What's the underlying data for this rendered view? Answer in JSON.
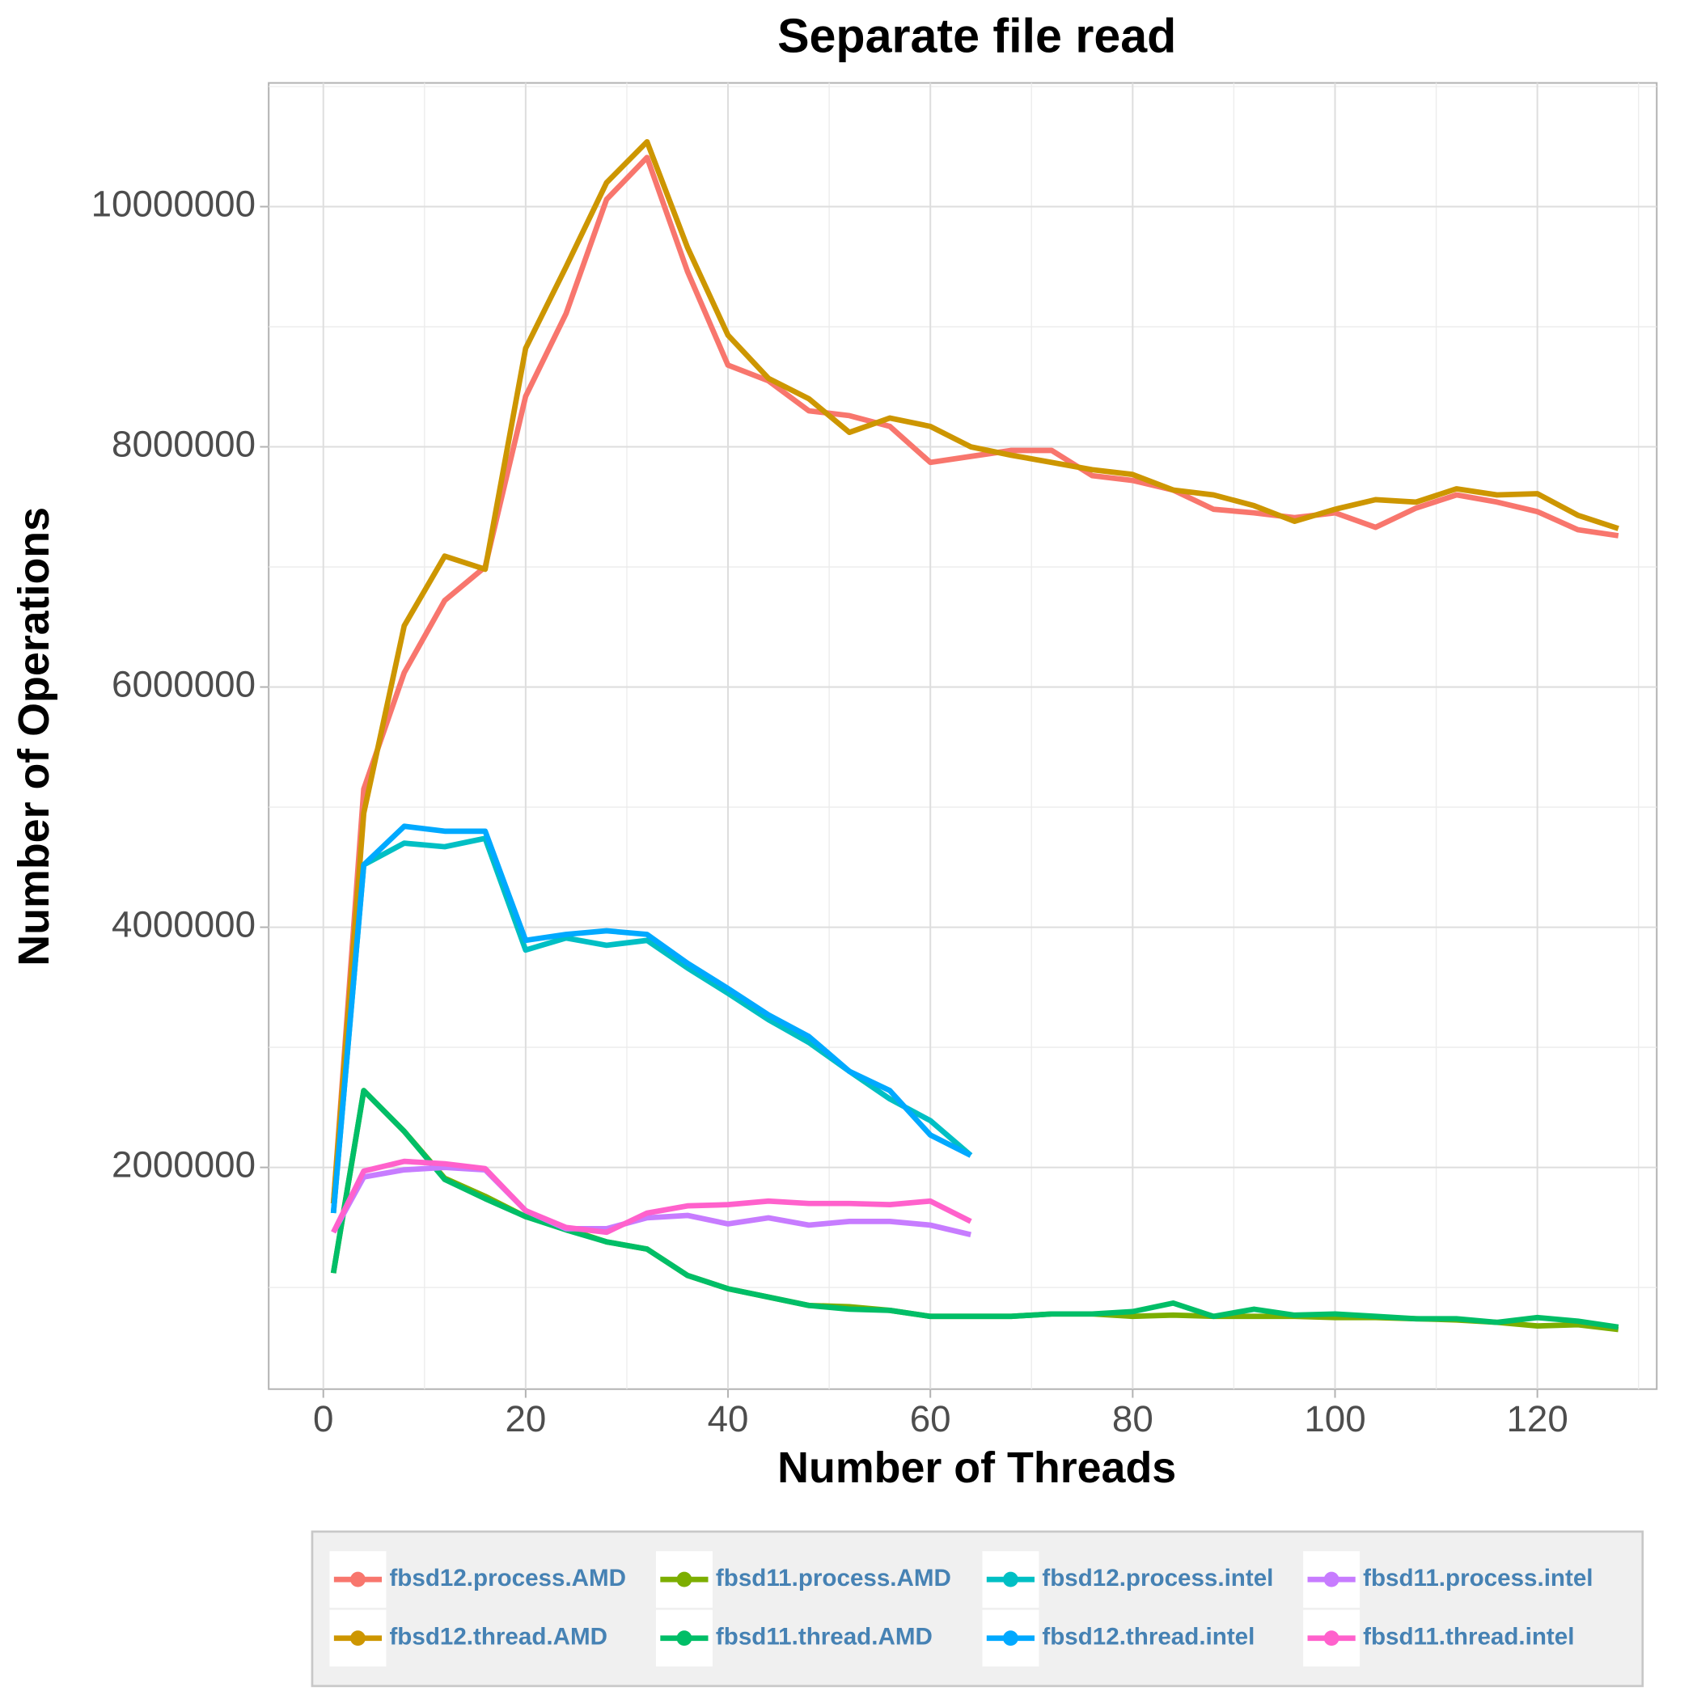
{
  "chart_data": {
    "type": "line",
    "title": "Separate file read",
    "xlabel": "Number of Threads",
    "ylabel": "Number of Operations",
    "x": [
      1,
      4,
      8,
      12,
      16,
      20,
      24,
      28,
      32,
      36,
      40,
      44,
      48,
      52,
      56,
      60,
      64,
      68,
      72,
      76,
      80,
      84,
      88,
      92,
      96,
      100,
      104,
      108,
      112,
      116,
      120,
      124,
      128
    ],
    "xlim": [
      -5.4,
      131.8
    ],
    "xticks": [
      0,
      20,
      40,
      60,
      80,
      100,
      120
    ],
    "ylim": [
      154000,
      11030000
    ],
    "yticks": [
      2000000,
      4000000,
      6000000,
      8000000,
      10000000
    ],
    "grid": true,
    "legend": "bottom",
    "series": [
      {
        "name": "fbsd12.process.AMD",
        "color": "#F8766D",
        "values": [
          1700000,
          5150000,
          6120000,
          6720000,
          7000000,
          8420000,
          9110000,
          10060000,
          10410000,
          9460000,
          8680000,
          8550000,
          8300000,
          8260000,
          8170000,
          7870000,
          7920000,
          7970000,
          7970000,
          7760000,
          7720000,
          7640000,
          7480000,
          7450000,
          7410000,
          7450000,
          7330000,
          7490000,
          7600000,
          7540000,
          7460000,
          7310000,
          7260000
        ]
      },
      {
        "name": "fbsd12.thread.AMD",
        "color": "#CD9600",
        "values": [
          1700000,
          4950000,
          6510000,
          7090000,
          6980000,
          8820000,
          9500000,
          10200000,
          10540000,
          9660000,
          8930000,
          8570000,
          8400000,
          8120000,
          8240000,
          8170000,
          8000000,
          7930000,
          7870000,
          7810000,
          7770000,
          7640000,
          7600000,
          7510000,
          7380000,
          7480000,
          7560000,
          7540000,
          7650000,
          7600000,
          7610000,
          7430000,
          7320000
        ]
      },
      {
        "name": "fbsd11.process.AMD",
        "color": "#7CAE00",
        "values": [
          1120000,
          2640000,
          2300000,
          1910000,
          1760000,
          1590000,
          1490000,
          1380000,
          1320000,
          1100000,
          990000,
          920000,
          850000,
          840000,
          810000,
          760000,
          760000,
          760000,
          780000,
          780000,
          760000,
          770000,
          760000,
          760000,
          760000,
          750000,
          750000,
          740000,
          730000,
          710000,
          680000,
          690000,
          650000
        ]
      },
      {
        "name": "fbsd11.thread.AMD",
        "color": "#00BE67",
        "values": [
          1120000,
          2640000,
          2300000,
          1900000,
          1740000,
          1590000,
          1480000,
          1380000,
          1320000,
          1100000,
          990000,
          920000,
          850000,
          820000,
          810000,
          760000,
          760000,
          760000,
          780000,
          780000,
          800000,
          870000,
          760000,
          820000,
          770000,
          780000,
          760000,
          740000,
          740000,
          710000,
          750000,
          720000,
          670000
        ]
      },
      {
        "name": "fbsd12.process.intel",
        "color": "#00BFC4",
        "values": [
          1620000,
          4520000,
          4700000,
          4670000,
          4740000,
          3810000,
          3910000,
          3850000,
          3890000,
          3660000,
          3450000,
          3230000,
          3040000,
          2800000,
          2570000,
          2390000,
          2100000,
          null,
          null,
          null,
          null,
          null,
          null,
          null,
          null,
          null,
          null,
          null,
          null,
          null,
          null,
          null,
          null
        ]
      },
      {
        "name": "fbsd12.thread.intel",
        "color": "#00A9FF",
        "values": [
          1620000,
          4520000,
          4840000,
          4800000,
          4800000,
          3890000,
          3940000,
          3970000,
          3940000,
          3700000,
          3490000,
          3270000,
          3090000,
          2800000,
          2640000,
          2270000,
          2100000,
          null,
          null,
          null,
          null,
          null,
          null,
          null,
          null,
          null,
          null,
          null,
          null,
          null,
          null,
          null,
          null
        ]
      },
      {
        "name": "fbsd11.process.intel",
        "color": "#C77CFF",
        "values": [
          1460000,
          1920000,
          1980000,
          2000000,
          1980000,
          1640000,
          1490000,
          1490000,
          1580000,
          1600000,
          1530000,
          1580000,
          1520000,
          1550000,
          1550000,
          1520000,
          1440000,
          null,
          null,
          null,
          null,
          null,
          null,
          null,
          null,
          null,
          null,
          null,
          null,
          null,
          null,
          null,
          null
        ]
      },
      {
        "name": "fbsd11.thread.intel",
        "color": "#FF61CC",
        "values": [
          1460000,
          1970000,
          2050000,
          2030000,
          1990000,
          1640000,
          1500000,
          1460000,
          1620000,
          1680000,
          1690000,
          1720000,
          1700000,
          1700000,
          1690000,
          1720000,
          1550000,
          null,
          null,
          null,
          null,
          null,
          null,
          null,
          null,
          null,
          null,
          null,
          null,
          null,
          null,
          null,
          null
        ]
      }
    ]
  }
}
